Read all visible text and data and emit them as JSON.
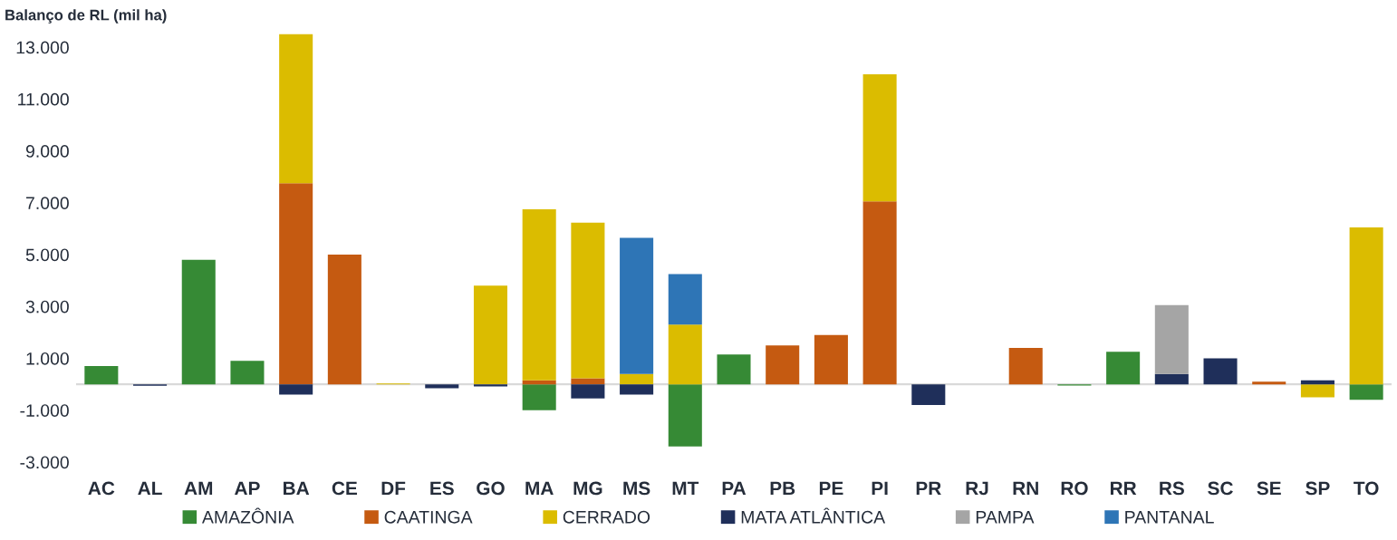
{
  "chart_data": {
    "type": "bar",
    "title": "Balanço de RL (mil ha)",
    "stacked": true,
    "categories": [
      "AC",
      "AL",
      "AM",
      "AP",
      "BA",
      "CE",
      "DF",
      "ES",
      "GO",
      "MA",
      "MG",
      "MS",
      "MT",
      "PA",
      "PB",
      "PE",
      "PI",
      "PR",
      "RJ",
      "RN",
      "RO",
      "RR",
      "RS",
      "SC",
      "SE",
      "SP",
      "TO"
    ],
    "series": [
      {
        "name": "AMAZÔNIA",
        "color": "#368a35",
        "values": [
          700,
          null,
          4800,
          900,
          null,
          null,
          null,
          null,
          null,
          -1000,
          null,
          null,
          -2400,
          1150,
          null,
          null,
          null,
          null,
          null,
          null,
          -50,
          1250,
          null,
          null,
          null,
          null,
          -600
        ]
      },
      {
        "name": "CAATINGA",
        "color": "#c55a11",
        "values": [
          null,
          null,
          null,
          null,
          7750,
          5000,
          null,
          null,
          null,
          150,
          230,
          null,
          null,
          null,
          1500,
          1900,
          7050,
          null,
          null,
          1400,
          null,
          null,
          null,
          null,
          100,
          null,
          null
        ]
      },
      {
        "name": "CERRADO",
        "color": "#dbbc00",
        "values": [
          null,
          null,
          null,
          null,
          5750,
          null,
          30,
          null,
          3800,
          6600,
          6000,
          400,
          2300,
          null,
          null,
          null,
          4900,
          null,
          null,
          null,
          null,
          null,
          null,
          null,
          null,
          -500,
          6050
        ]
      },
      {
        "name": "MATA ATLÂNTICA",
        "color": "#1f2f5a",
        "values": [
          null,
          -60,
          null,
          null,
          -400,
          null,
          null,
          -150,
          -80,
          null,
          -550,
          -400,
          null,
          null,
          null,
          null,
          null,
          -800,
          null,
          null,
          null,
          null,
          400,
          1000,
          null,
          150,
          null
        ]
      },
      {
        "name": "PAMPA",
        "color": "#a5a5a5",
        "values": [
          null,
          null,
          null,
          null,
          null,
          null,
          null,
          null,
          null,
          null,
          null,
          null,
          null,
          null,
          null,
          null,
          null,
          null,
          null,
          null,
          null,
          null,
          2650,
          null,
          null,
          null,
          null
        ]
      },
      {
        "name": "PANTANAL",
        "color": "#2e75b6",
        "values": [
          null,
          null,
          null,
          null,
          null,
          null,
          null,
          null,
          null,
          null,
          null,
          5250,
          1950,
          null,
          null,
          null,
          null,
          null,
          null,
          null,
          null,
          null,
          null,
          null,
          null,
          null,
          null
        ]
      }
    ],
    "ylim": [
      -3000,
      13700
    ],
    "yticks": [
      {
        "value": -3000,
        "label": "-3.000"
      },
      {
        "value": -1000,
        "label": "-1.000"
      },
      {
        "value": 1000,
        "label": "1.000"
      },
      {
        "value": 3000,
        "label": "3.000"
      },
      {
        "value": 5000,
        "label": "5.000"
      },
      {
        "value": 7000,
        "label": "7.000"
      },
      {
        "value": 9000,
        "label": "9.000"
      },
      {
        "value": 11000,
        "label": "11.000"
      },
      {
        "value": 13000,
        "label": "13.000"
      }
    ],
    "grid": false,
    "legend": "bottom"
  }
}
